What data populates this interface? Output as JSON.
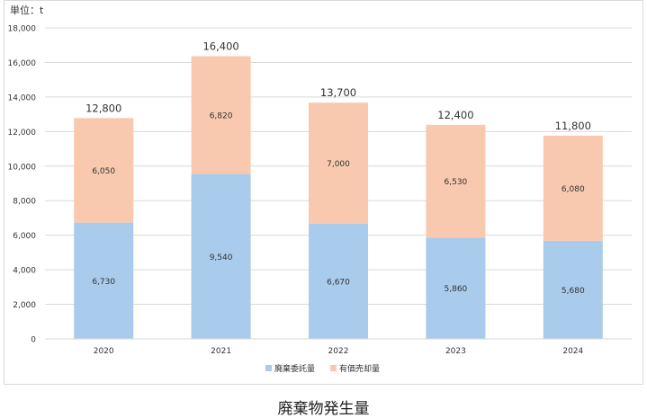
{
  "unit_label": "単位：t",
  "caption": "廃棄物発生量",
  "colors": {
    "series1": "#a9cbec",
    "series2": "#f8c9ae",
    "grid": "#d9d9d9",
    "text": "#333333"
  },
  "chart_data": {
    "type": "bar",
    "stacked": true,
    "categories": [
      "2020",
      "2021",
      "2022",
      "2023",
      "2024"
    ],
    "series": [
      {
        "name": "廃棄委託量",
        "values": [
          6730,
          9540,
          6670,
          5860,
          5680
        ]
      },
      {
        "name": "有価売却量",
        "values": [
          6050,
          6820,
          7000,
          6530,
          6080
        ]
      }
    ],
    "value_labels": [
      [
        "6,730",
        "9,540",
        "6,670",
        "5,860",
        "5,680"
      ],
      [
        "6,050",
        "6,820",
        "7,000",
        "6,530",
        "6,080"
      ]
    ],
    "totals": [
      "12,800",
      "16,400",
      "13,700",
      "12,400",
      "11,800"
    ],
    "ylim": [
      0,
      18000
    ],
    "yticks": [
      "0",
      "2,000",
      "4,000",
      "6,000",
      "8,000",
      "10,000",
      "12,000",
      "14,000",
      "16,000",
      "18,000"
    ],
    "grid": true,
    "legend_position": "bottom",
    "title": "",
    "xlabel": "",
    "ylabel": ""
  }
}
